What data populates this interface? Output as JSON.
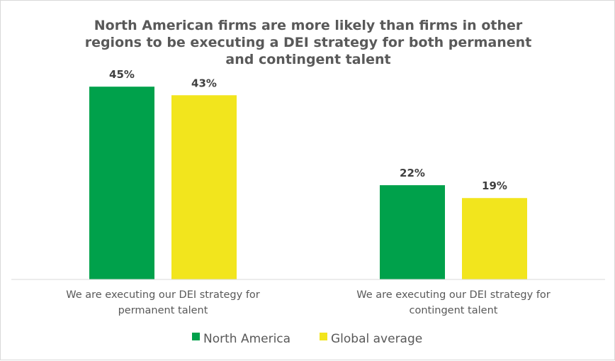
{
  "chart_data": {
    "type": "bar",
    "title": [
      "North American firms are more likely than firms in other",
      "regions to be executing a DEI strategy for both permanent",
      "and contingent talent"
    ],
    "categories": [
      [
        "We are executing our DEI strategy for",
        "permanent talent"
      ],
      [
        "We are executing our DEI strategy for",
        "contingent talent"
      ]
    ],
    "series": [
      {
        "name": "North America",
        "color": "#00a14b",
        "values": [
          45,
          22
        ],
        "labels": [
          "45%",
          "22%"
        ]
      },
      {
        "name": "Global average",
        "color": "#f2e51d",
        "values": [
          43,
          19
        ],
        "labels": [
          "43%",
          "19%"
        ]
      }
    ],
    "ylim": [
      0,
      50
    ],
    "grid": false,
    "xlabel": "",
    "ylabel": "",
    "legend_position": "bottom"
  }
}
